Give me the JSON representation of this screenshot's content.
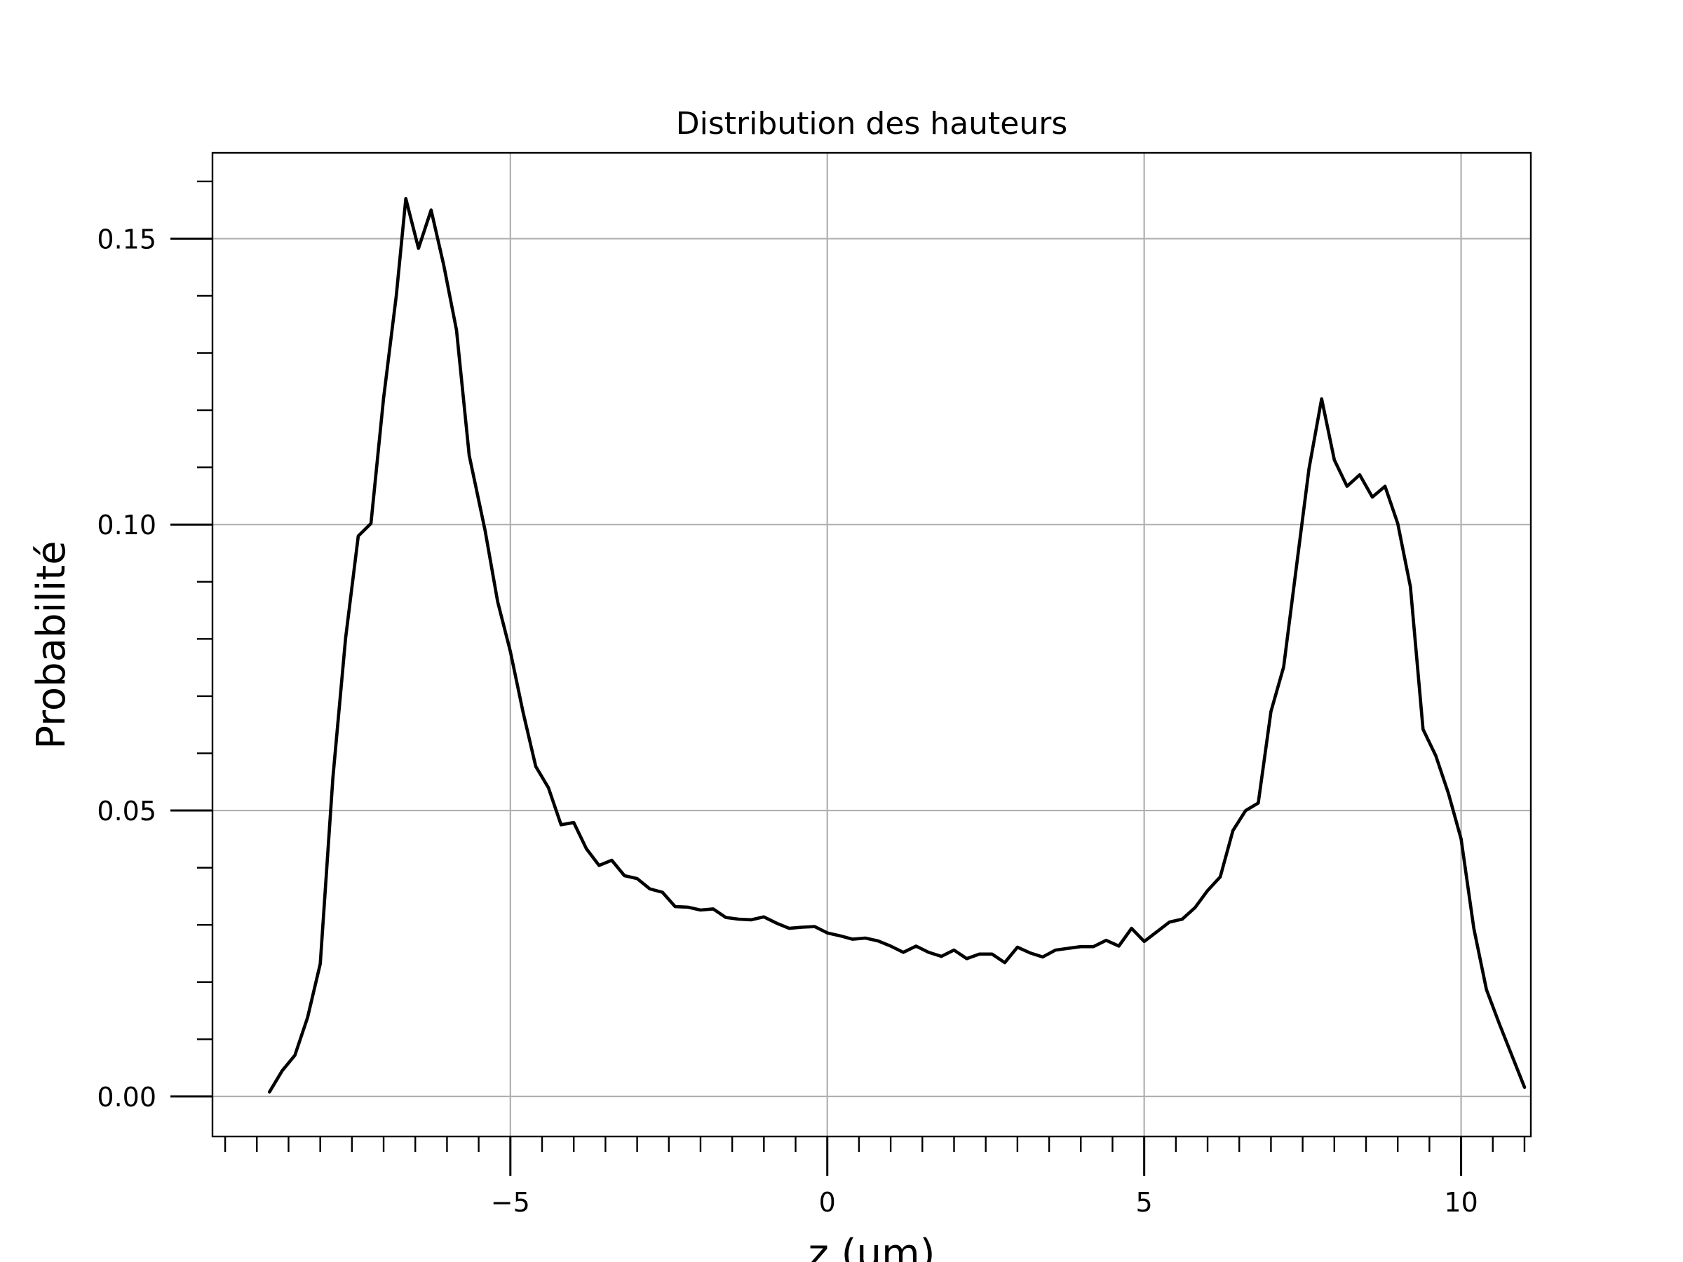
{
  "chart_data": {
    "type": "line",
    "title": "Distribution des hauteurs",
    "xlabel": "z (µm)",
    "ylabel": "Probabilité",
    "xlim": [
      -9.7,
      11.1
    ],
    "ylim": [
      -0.007,
      0.165
    ],
    "grid": true,
    "legend": "none",
    "x_ticks": [
      {
        "value": -5,
        "label": "−5"
      },
      {
        "value": 0,
        "label": "0"
      },
      {
        "value": 5,
        "label": "5"
      },
      {
        "value": 10,
        "label": "10"
      }
    ],
    "y_ticks": [
      {
        "value": 0,
        "label": "0.00"
      },
      {
        "value": 0.05,
        "label": "0.05"
      },
      {
        "value": 0.1,
        "label": "0.10"
      },
      {
        "value": 0.15,
        "label": "0.15"
      }
    ],
    "x_minor_step": 0.5,
    "y_minor_step": 0.01,
    "series": [
      {
        "color": "#000000",
        "points": [
          [
            -8.8,
            0.0008
          ],
          [
            -8.6,
            0.0045
          ],
          [
            -8.4,
            0.0072
          ],
          [
            -8.2,
            0.0138
          ],
          [
            -8.0,
            0.0232
          ],
          [
            -7.8,
            0.0557
          ],
          [
            -7.6,
            0.0801
          ],
          [
            -7.4,
            0.098
          ],
          [
            -7.2,
            0.1002
          ],
          [
            -7.0,
            0.1221
          ],
          [
            -6.8,
            0.14
          ],
          [
            -6.65,
            0.157
          ],
          [
            -6.45,
            0.1483
          ],
          [
            -6.25,
            0.155
          ],
          [
            -6.05,
            0.1453
          ],
          [
            -5.85,
            0.134
          ],
          [
            -5.65,
            0.1121
          ],
          [
            -5.4,
            0.099
          ],
          [
            -5.2,
            0.0865
          ],
          [
            -5.0,
            0.0778
          ],
          [
            -4.8,
            0.0672
          ],
          [
            -4.6,
            0.0577
          ],
          [
            -4.4,
            0.054
          ],
          [
            -4.2,
            0.0475
          ],
          [
            -4.0,
            0.0479
          ],
          [
            -3.8,
            0.0433
          ],
          [
            -3.6,
            0.0404
          ],
          [
            -3.4,
            0.0413
          ],
          [
            -3.2,
            0.0386
          ],
          [
            -3.0,
            0.0381
          ],
          [
            -2.8,
            0.0363
          ],
          [
            -2.6,
            0.0357
          ],
          [
            -2.4,
            0.0332
          ],
          [
            -2.2,
            0.0331
          ],
          [
            -2.0,
            0.0326
          ],
          [
            -1.8,
            0.0328
          ],
          [
            -1.6,
            0.0313
          ],
          [
            -1.4,
            0.031
          ],
          [
            -1.2,
            0.0309
          ],
          [
            -1.0,
            0.0314
          ],
          [
            -0.8,
            0.0303
          ],
          [
            -0.6,
            0.0294
          ],
          [
            -0.4,
            0.0296
          ],
          [
            -0.2,
            0.0297
          ],
          [
            0.0,
            0.0286
          ],
          [
            0.2,
            0.0281
          ],
          [
            0.4,
            0.0275
          ],
          [
            0.6,
            0.0277
          ],
          [
            0.8,
            0.0272
          ],
          [
            1.0,
            0.0263
          ],
          [
            1.2,
            0.0252
          ],
          [
            1.4,
            0.0263
          ],
          [
            1.6,
            0.0252
          ],
          [
            1.8,
            0.0245
          ],
          [
            2.0,
            0.0256
          ],
          [
            2.2,
            0.0241
          ],
          [
            2.4,
            0.0249
          ],
          [
            2.6,
            0.0249
          ],
          [
            2.8,
            0.0234
          ],
          [
            3.0,
            0.0261
          ],
          [
            3.2,
            0.0251
          ],
          [
            3.4,
            0.0244
          ],
          [
            3.6,
            0.0256
          ],
          [
            3.8,
            0.0259
          ],
          [
            4.0,
            0.0262
          ],
          [
            4.2,
            0.0262
          ],
          [
            4.4,
            0.0273
          ],
          [
            4.6,
            0.0263
          ],
          [
            4.8,
            0.0294
          ],
          [
            5.0,
            0.0271
          ],
          [
            5.2,
            0.0288
          ],
          [
            5.4,
            0.0305
          ],
          [
            5.6,
            0.031
          ],
          [
            5.8,
            0.033
          ],
          [
            6.0,
            0.036
          ],
          [
            6.2,
            0.0384
          ],
          [
            6.4,
            0.0465
          ],
          [
            6.6,
            0.05
          ],
          [
            6.8,
            0.0513
          ],
          [
            7.0,
            0.0673
          ],
          [
            7.2,
            0.0751
          ],
          [
            7.4,
            0.0925
          ],
          [
            7.6,
            0.1098
          ],
          [
            7.8,
            0.122
          ],
          [
            8.0,
            0.1113
          ],
          [
            8.2,
            0.1067
          ],
          [
            8.4,
            0.1087
          ],
          [
            8.6,
            0.1048
          ],
          [
            8.8,
            0.1067
          ],
          [
            9.0,
            0.1002
          ],
          [
            9.2,
            0.0891
          ],
          [
            9.4,
            0.0642
          ],
          [
            9.6,
            0.0596
          ],
          [
            9.8,
            0.053
          ],
          [
            10.0,
            0.045
          ],
          [
            10.2,
            0.0294
          ],
          [
            10.4,
            0.0187
          ],
          [
            10.6,
            0.0128
          ],
          [
            10.8,
            0.0072
          ],
          [
            11.0,
            0.0016
          ]
        ]
      }
    ]
  }
}
